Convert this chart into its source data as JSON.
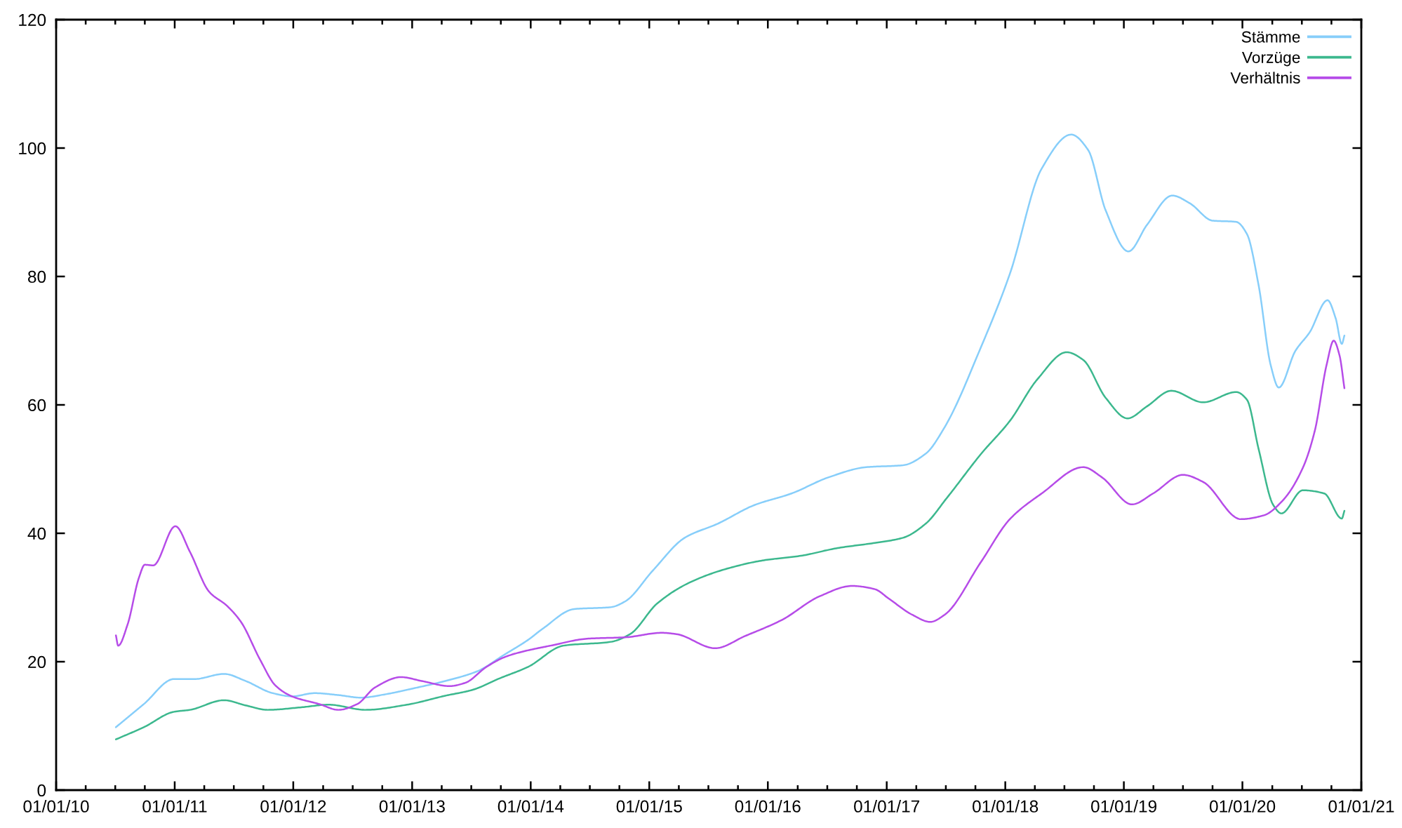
{
  "chart_data": {
    "type": "line",
    "series": [
      {
        "name": "Stämme",
        "color": "#87cefa",
        "x": [
          "2010-07-04",
          "2010-09-28",
          "2010-12-30",
          "2011-03-03",
          "2011-06-02",
          "2011-08-07",
          "2011-10-30",
          "2011-12-28",
          "2012-03-07",
          "2012-05-19",
          "2012-07-27",
          "2012-10-08",
          "2013-01-01",
          "2013-04-13",
          "2013-07-20",
          "2013-10-12",
          "2013-12-24",
          "2014-02-06",
          "2014-05-15",
          "2014-09-05",
          "2014-10-19",
          "2015-01-12",
          "2015-04-20",
          "2015-07-31",
          "2015-11-21",
          "2016-03-14",
          "2016-07-05",
          "2016-10-30",
          "2017-02-20",
          "2017-05-01",
          "2017-06-28",
          "2017-10-19",
          "2018-01-15",
          "2018-04-23",
          "2018-07-23",
          "2018-09-13",
          "2018-11-06",
          "2019-01-15",
          "2019-03-14",
          "2019-05-30",
          "2019-07-23",
          "2019-10-01",
          "2019-12-13",
          "2020-01-15",
          "2020-02-20",
          "2020-03-28",
          "2020-04-22",
          "2020-06-12",
          "2020-07-26",
          "2020-09-19",
          "2020-10-14",
          "2020-11-02",
          "2020-11-10"
        ],
        "values": [
          9.8,
          13.4,
          17.3,
          17.3,
          18.1,
          17.0,
          15.1,
          14.6,
          15.1,
          14.8,
          14.4,
          14.9,
          15.8,
          17.0,
          18.5,
          21.1,
          23.4,
          25.1,
          28.2,
          28.5,
          29.4,
          34.2,
          39.3,
          41.5,
          44.4,
          46.2,
          48.7,
          50.3,
          50.6,
          52.4,
          56.5,
          69.1,
          80.4,
          96.8,
          102.1,
          99.7,
          90.3,
          83.9,
          88.1,
          92.6,
          91.4,
          88.7,
          88.5,
          86.6,
          78.6,
          66.2,
          62.7,
          68.4,
          71.3,
          76.3,
          73.5,
          69.5,
          70.8
        ]
      },
      {
        "name": "Vorzüge",
        "color": "#3cb88e",
        "x": [
          "2010-07-04",
          "2010-09-28",
          "2010-12-30",
          "2011-02-17",
          "2011-06-02",
          "2011-08-07",
          "2011-10-15",
          "2012-01-26",
          "2012-04-19",
          "2012-08-10",
          "2012-12-16",
          "2013-04-13",
          "2013-07-05",
          "2013-09-27",
          "2013-12-24",
          "2014-04-12",
          "2014-09-05",
          "2014-11-03",
          "2015-01-26",
          "2015-05-04",
          "2015-08-29",
          "2015-12-20",
          "2016-04-12",
          "2016-08-03",
          "2016-11-25",
          "2017-02-20",
          "2017-05-01",
          "2017-07-05",
          "2017-10-19",
          "2018-01-15",
          "2018-04-10",
          "2018-07-09",
          "2018-08-29",
          "2018-11-06",
          "2019-01-12",
          "2019-03-14",
          "2019-05-27",
          "2019-09-02",
          "2019-12-13",
          "2020-01-15",
          "2020-02-20",
          "2020-04-05",
          "2020-04-30",
          "2020-07-05",
          "2020-09-09",
          "2020-11-02",
          "2020-11-10"
        ],
        "values": [
          7.9,
          9.8,
          12.2,
          12.5,
          14.0,
          13.2,
          12.5,
          12.9,
          13.3,
          12.5,
          13.3,
          14.7,
          15.6,
          17.4,
          19.2,
          22.5,
          23.1,
          24.3,
          29.1,
          32.3,
          34.5,
          35.8,
          36.5,
          37.7,
          38.5,
          39.3,
          41.5,
          45.5,
          52.4,
          57.5,
          64.0,
          68.2,
          67.0,
          61.1,
          57.9,
          59.8,
          62.2,
          60.4,
          62.0,
          60.8,
          53.1,
          44.4,
          43.1,
          46.7,
          46.2,
          42.3,
          43.5
        ]
      },
      {
        "name": "Verhältnis",
        "color": "#b64ce8",
        "x": [
          "2010-07-04",
          "2010-07-11",
          "2010-08-09",
          "2010-09-13",
          "2010-10-01",
          "2010-10-27",
          "2011-01-03",
          "2011-02-17",
          "2011-04-17",
          "2011-06-11",
          "2011-07-24",
          "2011-09-21",
          "2011-11-07",
          "2011-12-28",
          "2012-03-21",
          "2012-05-19",
          "2012-07-16",
          "2012-09-09",
          "2012-11-28",
          "2013-01-30",
          "2013-04-27",
          "2013-06-13",
          "2013-08-18",
          "2013-10-12",
          "2013-11-24",
          "2014-03-03",
          "2014-06-28",
          "2014-10-19",
          "2015-02-09",
          "2015-03-25",
          "2015-07-23",
          "2015-10-23",
          "2016-02-13",
          "2016-06-09",
          "2016-09-16",
          "2016-11-25",
          "2017-01-08",
          "2017-03-21",
          "2017-05-15",
          "2017-06-28",
          "2017-10-19",
          "2018-01-15",
          "2018-04-23",
          "2018-08-29",
          "2018-10-26",
          "2019-01-26",
          "2019-04-01",
          "2019-07-02",
          "2019-09-02",
          "2019-12-27",
          "2020-03-07",
          "2020-05-04",
          "2020-07-05",
          "2020-08-11",
          "2020-09-16",
          "2020-10-08",
          "2020-10-26",
          "2020-11-10"
        ],
        "values": [
          24.1,
          22.5,
          25.8,
          33.1,
          35.1,
          35.0,
          41.1,
          37.1,
          30.9,
          28.7,
          26.2,
          20.3,
          16.3,
          14.6,
          13.4,
          12.5,
          13.4,
          16.0,
          17.6,
          17.0,
          16.2,
          16.7,
          19.2,
          20.7,
          21.4,
          22.5,
          23.6,
          23.8,
          24.5,
          24.3,
          22.1,
          24.0,
          26.5,
          30.2,
          31.8,
          31.3,
          29.8,
          27.3,
          26.2,
          27.3,
          35.6,
          42.2,
          46.2,
          50.3,
          48.7,
          44.5,
          46.2,
          49.1,
          48.0,
          42.2,
          42.8,
          45.1,
          50.2,
          56.0,
          66.2,
          70.0,
          67.7,
          62.6
        ]
      }
    ],
    "xlim": [
      "2010-01-01",
      "2021-01-01"
    ],
    "xticks": [
      {
        "value": "2010-01-01",
        "label": "01/01/10"
      },
      {
        "value": "2010-04-02",
        "label": null
      },
      {
        "value": "2010-07-02",
        "label": null
      },
      {
        "value": "2010-10-01",
        "label": null
      },
      {
        "value": "2011-01-01",
        "label": "01/01/11"
      },
      {
        "value": "2011-04-02",
        "label": null
      },
      {
        "value": "2011-07-02",
        "label": null
      },
      {
        "value": "2011-10-01",
        "label": null
      },
      {
        "value": "2012-01-01",
        "label": "01/01/12"
      },
      {
        "value": "2012-04-02",
        "label": null
      },
      {
        "value": "2012-07-02",
        "label": null
      },
      {
        "value": "2012-10-01",
        "label": null
      },
      {
        "value": "2013-01-01",
        "label": "01/01/13"
      },
      {
        "value": "2013-04-02",
        "label": null
      },
      {
        "value": "2013-07-02",
        "label": null
      },
      {
        "value": "2013-10-01",
        "label": null
      },
      {
        "value": "2014-01-01",
        "label": "01/01/14"
      },
      {
        "value": "2014-04-02",
        "label": null
      },
      {
        "value": "2014-07-02",
        "label": null
      },
      {
        "value": "2014-10-01",
        "label": null
      },
      {
        "value": "2015-01-01",
        "label": "01/01/15"
      },
      {
        "value": "2015-04-02",
        "label": null
      },
      {
        "value": "2015-07-02",
        "label": null
      },
      {
        "value": "2015-10-01",
        "label": null
      },
      {
        "value": "2016-01-01",
        "label": "01/01/16"
      },
      {
        "value": "2016-04-02",
        "label": null
      },
      {
        "value": "2016-07-02",
        "label": null
      },
      {
        "value": "2016-10-01",
        "label": null
      },
      {
        "value": "2017-01-01",
        "label": "01/01/17"
      },
      {
        "value": "2017-04-02",
        "label": null
      },
      {
        "value": "2017-07-02",
        "label": null
      },
      {
        "value": "2017-10-01",
        "label": null
      },
      {
        "value": "2018-01-01",
        "label": "01/01/18"
      },
      {
        "value": "2018-04-02",
        "label": null
      },
      {
        "value": "2018-07-02",
        "label": null
      },
      {
        "value": "2018-10-01",
        "label": null
      },
      {
        "value": "2019-01-01",
        "label": "01/01/19"
      },
      {
        "value": "2019-04-02",
        "label": null
      },
      {
        "value": "2019-07-02",
        "label": null
      },
      {
        "value": "2019-10-01",
        "label": null
      },
      {
        "value": "2020-01-01",
        "label": "01/01/20"
      },
      {
        "value": "2020-04-02",
        "label": null
      },
      {
        "value": "2020-07-02",
        "label": null
      },
      {
        "value": "2020-10-01",
        "label": null
      },
      {
        "value": "2021-01-01",
        "label": "01/01/21"
      }
    ],
    "ylim": [
      0,
      120
    ],
    "yticks": [
      0,
      20,
      40,
      60,
      80,
      100,
      120
    ],
    "legend": "top right"
  }
}
